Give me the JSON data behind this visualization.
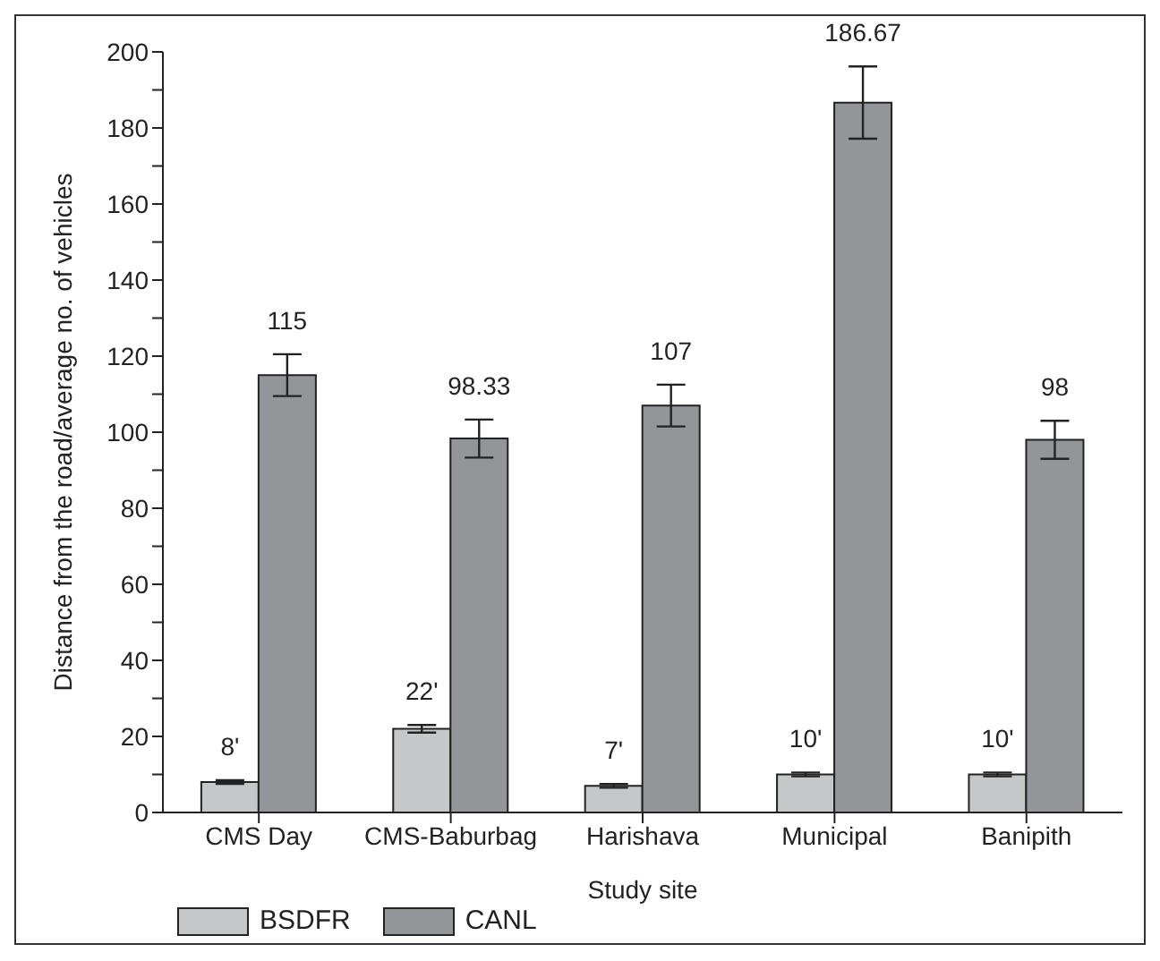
{
  "chart_data": {
    "type": "bar",
    "xlabel": "Study site",
    "ylabel": "Distance from the road/average no. of vehicles",
    "categories": [
      "CMS Day",
      "CMS-Baburbag",
      "Harishava",
      "Municipal",
      "Banipith"
    ],
    "series": [
      {
        "name": "BSDFR",
        "color": "#c6c7c8",
        "values": [
          8,
          22,
          7,
          10,
          10
        ],
        "errors": [
          0.5,
          1,
          0.5,
          0.5,
          0.5
        ],
        "value_labels": [
          "8'",
          "22'",
          "7'",
          "10'",
          "10'"
        ]
      },
      {
        "name": "CANL",
        "color": "#939598",
        "values": [
          115,
          98.33,
          107,
          186.67,
          98
        ],
        "errors": [
          5.5,
          5,
          5.5,
          9.5,
          5
        ],
        "value_labels": [
          "115",
          "98.33",
          "107",
          "186.67",
          "98"
        ]
      }
    ],
    "ylim": [
      0,
      200
    ],
    "yticks": [
      0,
      {
        "value": 10,
        "label": null
      },
      20,
      {
        "value": 30,
        "label": null
      },
      40,
      {
        "value": 50,
        "label": null
      },
      60,
      {
        "value": 70,
        "label": null
      },
      80,
      {
        "value": 90,
        "label": null
      },
      100,
      {
        "value": 110,
        "label": null
      },
      120,
      {
        "value": 130,
        "label": null
      },
      140,
      {
        "value": 150,
        "label": null
      },
      160,
      {
        "value": 170,
        "label": null
      },
      180,
      {
        "value": 190,
        "label": null
      },
      200
    ],
    "grid": false,
    "legend": "bottom left"
  }
}
